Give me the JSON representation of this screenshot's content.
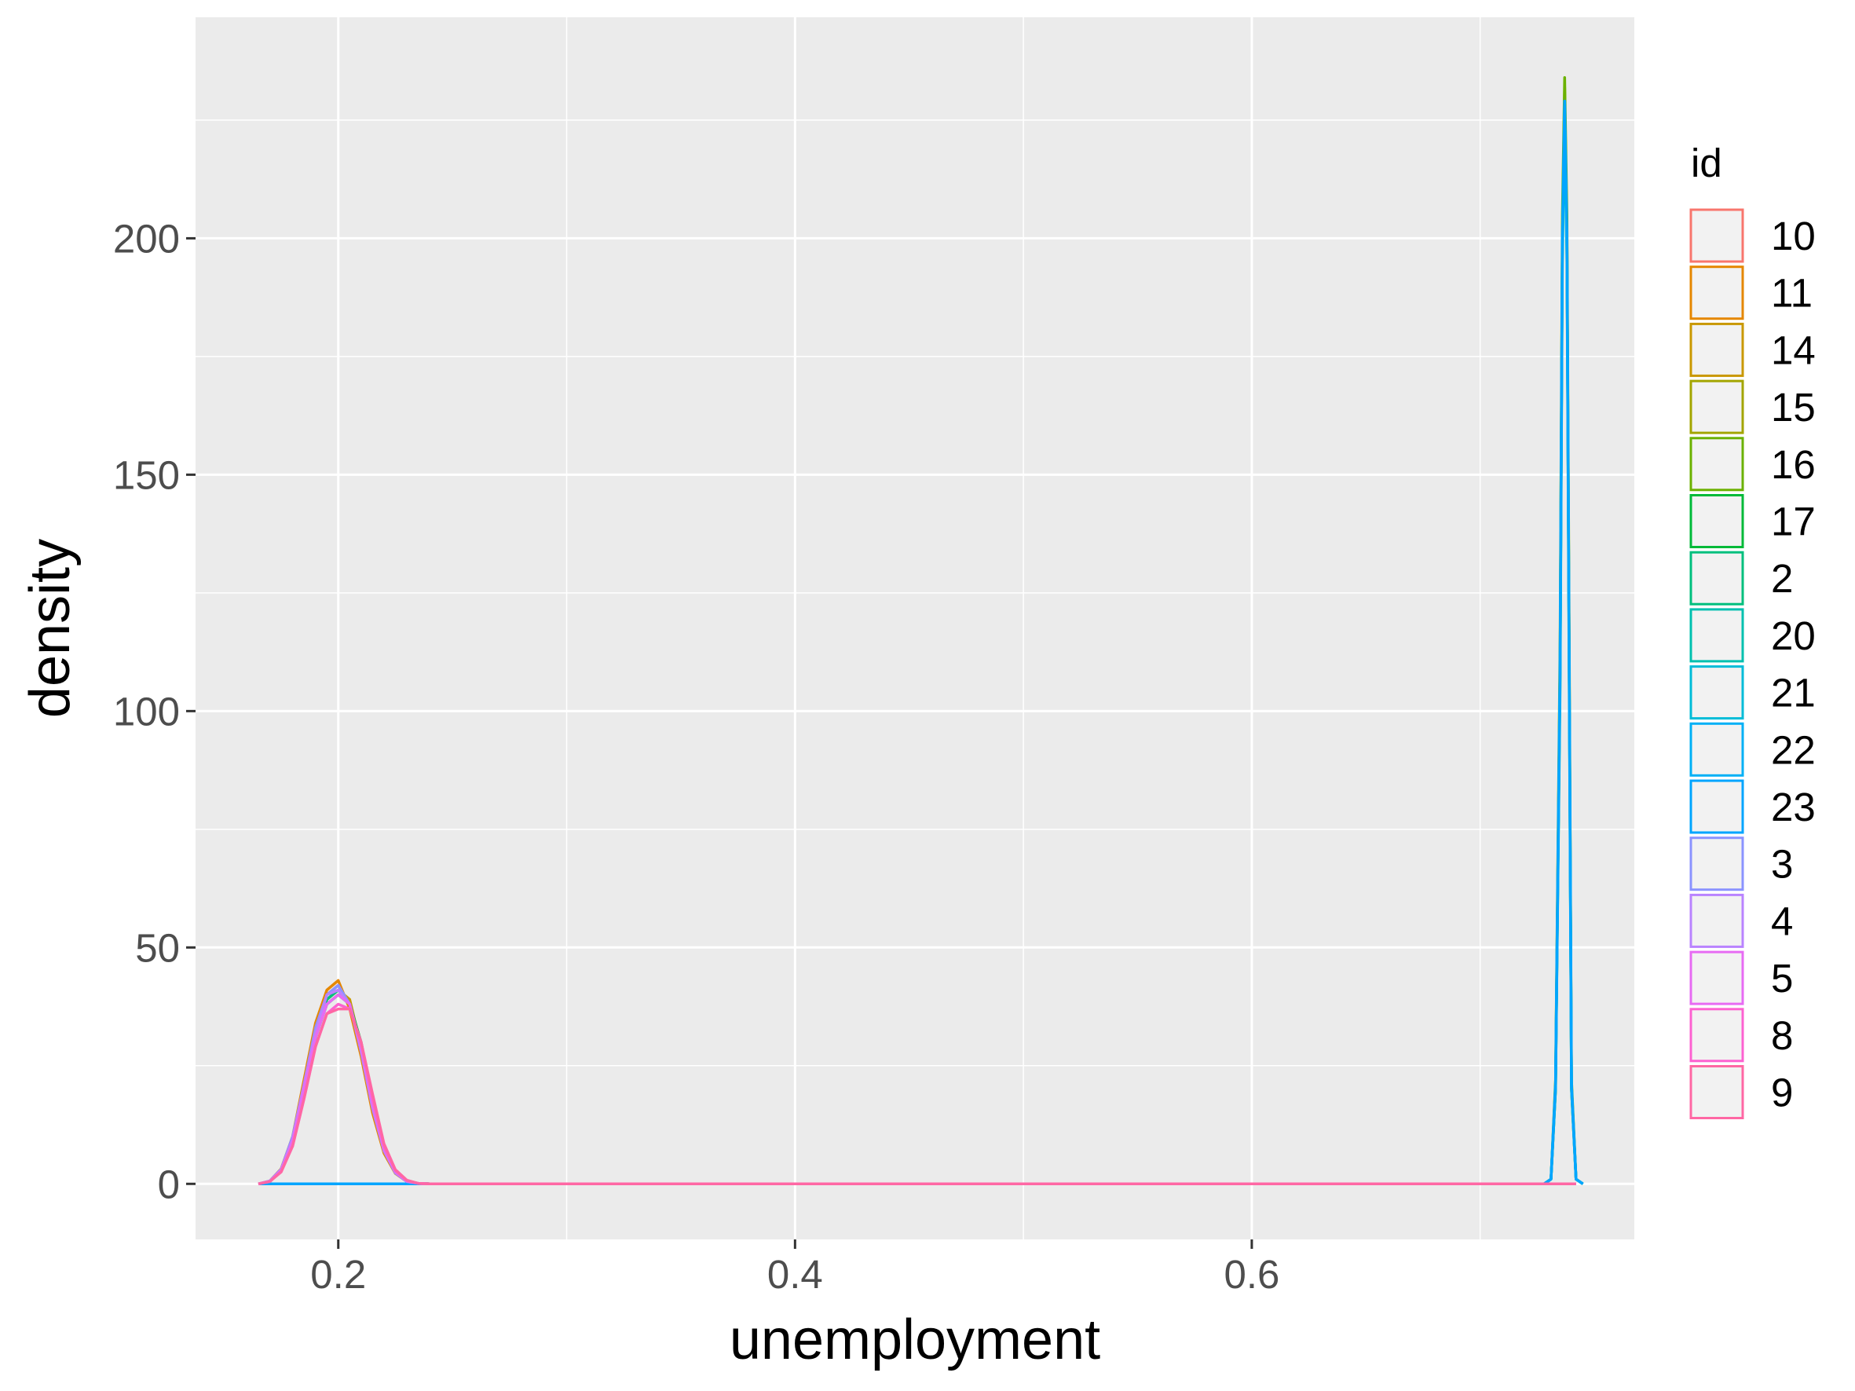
{
  "chart_data": {
    "type": "line",
    "subtype": "density",
    "title": "",
    "xlabel": "unemployment",
    "ylabel": "density",
    "xlim": [
      0.1375,
      0.7675
    ],
    "ylim": [
      -11.75,
      246.75
    ],
    "x_ticks": [
      0.2,
      0.4,
      0.6
    ],
    "x_tick_labels": [
      "0.2",
      "0.4",
      "0.6"
    ],
    "y_ticks": [
      0,
      50,
      100,
      150,
      200
    ],
    "y_tick_labels": [
      "0",
      "50",
      "100",
      "150",
      "200"
    ],
    "grid": true,
    "background": "#ebebeb",
    "legend": {
      "title": "id",
      "placement": "right",
      "entries": [
        {
          "label": "10",
          "color": "#F8766D"
        },
        {
          "label": "11",
          "color": "#E58700"
        },
        {
          "label": "14",
          "color": "#C99800"
        },
        {
          "label": "15",
          "color": "#A3A500"
        },
        {
          "label": "16",
          "color": "#6BB100"
        },
        {
          "label": "17",
          "color": "#00BA38"
        },
        {
          "label": "2",
          "color": "#00BF7D"
        },
        {
          "label": "20",
          "color": "#00C0AF"
        },
        {
          "label": "21",
          "color": "#00BCD8"
        },
        {
          "label": "22",
          "color": "#00B0F6"
        },
        {
          "label": "23",
          "color": "#00A5FF"
        },
        {
          "label": "3",
          "color": "#8B93FF"
        },
        {
          "label": "4",
          "color": "#B983FF"
        },
        {
          "label": "5",
          "color": "#E76BF3"
        },
        {
          "label": "8",
          "color": "#FD61D1"
        },
        {
          "label": "9",
          "color": "#FF67A4"
        }
      ]
    },
    "series": [
      {
        "name": "10",
        "color": "#F8766D",
        "x": [
          0.165,
          0.17,
          0.175,
          0.18,
          0.185,
          0.19,
          0.195,
          0.2,
          0.205,
          0.21,
          0.215,
          0.22,
          0.225,
          0.23,
          0.235,
          0.24,
          0.3,
          0.5,
          0.7,
          0.742
        ],
        "y": [
          0,
          0.6,
          3,
          9,
          20,
          32,
          40,
          42,
          38,
          28,
          16,
          7,
          2.5,
          0.6,
          0.1,
          0,
          0,
          0,
          0,
          0
        ]
      },
      {
        "name": "11",
        "color": "#E58700",
        "x": [
          0.165,
          0.17,
          0.175,
          0.18,
          0.185,
          0.19,
          0.195,
          0.2,
          0.205,
          0.21,
          0.215,
          0.22,
          0.225,
          0.23,
          0.235,
          0.24,
          0.3,
          0.5,
          0.7,
          0.742
        ],
        "y": [
          0,
          0.6,
          3.2,
          10,
          22,
          34,
          41,
          43,
          37,
          27,
          15,
          6.5,
          2.2,
          0.5,
          0.1,
          0,
          0,
          0,
          0,
          0
        ]
      },
      {
        "name": "14",
        "color": "#C99800",
        "x": [
          0.165,
          0.17,
          0.175,
          0.18,
          0.185,
          0.19,
          0.195,
          0.2,
          0.205,
          0.21,
          0.215,
          0.22,
          0.225,
          0.23,
          0.235,
          0.24,
          0.3,
          0.5,
          0.7,
          0.742
        ],
        "y": [
          0,
          0.5,
          2.8,
          9,
          19,
          31,
          39,
          41,
          39,
          29,
          17,
          7.5,
          2.6,
          0.6,
          0.1,
          0,
          0,
          0,
          0,
          0
        ]
      },
      {
        "name": "15",
        "color": "#A3A500",
        "x": [
          0.165,
          0.3,
          0.5,
          0.7,
          0.728,
          0.731,
          0.733,
          0.735,
          0.736,
          0.737,
          0.738,
          0.739,
          0.74,
          0.742,
          0.745
        ],
        "y": [
          0,
          0,
          0,
          0,
          0,
          1,
          20,
          110,
          200,
          232,
          200,
          110,
          20,
          1,
          0
        ]
      },
      {
        "name": "16",
        "color": "#6BB100",
        "x": [
          0.165,
          0.3,
          0.5,
          0.7,
          0.728,
          0.731,
          0.733,
          0.735,
          0.736,
          0.737,
          0.738,
          0.739,
          0.74,
          0.742,
          0.745
        ],
        "y": [
          0,
          0,
          0,
          0,
          0,
          1,
          22,
          115,
          205,
          234,
          205,
          115,
          22,
          1,
          0
        ]
      },
      {
        "name": "17",
        "color": "#00BA38",
        "x": [
          0.165,
          0.17,
          0.175,
          0.18,
          0.185,
          0.19,
          0.195,
          0.2,
          0.205,
          0.21,
          0.215,
          0.22,
          0.225,
          0.23,
          0.235,
          0.24,
          0.3,
          0.5,
          0.7,
          0.742
        ],
        "y": [
          0,
          0.5,
          2.7,
          8.5,
          19,
          31,
          38,
          40,
          38,
          30,
          18,
          8,
          2.8,
          0.7,
          0.1,
          0,
          0,
          0,
          0,
          0
        ]
      },
      {
        "name": "2",
        "color": "#00BF7D",
        "x": [
          0.165,
          0.17,
          0.175,
          0.18,
          0.185,
          0.19,
          0.195,
          0.2,
          0.205,
          0.21,
          0.215,
          0.22,
          0.225,
          0.23,
          0.235,
          0.24,
          0.3,
          0.5,
          0.7,
          0.742
        ],
        "y": [
          0,
          0.5,
          2.9,
          9,
          20,
          31,
          39,
          41,
          38,
          29,
          17,
          7.5,
          2.5,
          0.6,
          0.1,
          0,
          0,
          0,
          0,
          0
        ]
      },
      {
        "name": "20",
        "color": "#00C0AF",
        "x": [
          0.165,
          0.3,
          0.5,
          0.7,
          0.728,
          0.731,
          0.733,
          0.735,
          0.736,
          0.737,
          0.738,
          0.739,
          0.74,
          0.742,
          0.745
        ],
        "y": [
          0,
          0,
          0,
          0,
          0,
          1,
          20,
          105,
          195,
          226,
          195,
          105,
          20,
          1,
          0
        ]
      },
      {
        "name": "21",
        "color": "#00BCD8",
        "x": [
          0.165,
          0.3,
          0.5,
          0.7,
          0.728,
          0.731,
          0.733,
          0.735,
          0.736,
          0.737,
          0.738,
          0.739,
          0.74,
          0.742,
          0.745
        ],
        "y": [
          0,
          0,
          0,
          0,
          0,
          1,
          20,
          108,
          198,
          228,
          198,
          108,
          20,
          1,
          0
        ]
      },
      {
        "name": "22",
        "color": "#00B0F6",
        "x": [
          0.165,
          0.3,
          0.5,
          0.7,
          0.728,
          0.731,
          0.733,
          0.735,
          0.736,
          0.737,
          0.738,
          0.739,
          0.74,
          0.742,
          0.745
        ],
        "y": [
          0,
          0,
          0,
          0,
          0,
          1,
          21,
          110,
          200,
          229,
          200,
          110,
          21,
          1,
          0
        ]
      },
      {
        "name": "23",
        "color": "#00A5FF",
        "x": [
          0.165,
          0.3,
          0.5,
          0.7,
          0.728,
          0.731,
          0.733,
          0.735,
          0.736,
          0.737,
          0.738,
          0.739,
          0.74,
          0.742,
          0.745
        ],
        "y": [
          0,
          0,
          0,
          0,
          0,
          1,
          21,
          110,
          200,
          229,
          200,
          110,
          21,
          1,
          0
        ]
      },
      {
        "name": "3",
        "color": "#8B93FF",
        "x": [
          0.165,
          0.17,
          0.175,
          0.18,
          0.185,
          0.19,
          0.195,
          0.2,
          0.205,
          0.21,
          0.215,
          0.22,
          0.225,
          0.23,
          0.235,
          0.24,
          0.3,
          0.5,
          0.7,
          0.742
        ],
        "y": [
          0,
          0.6,
          3.1,
          10,
          21,
          33,
          40,
          42,
          38,
          28,
          16,
          7,
          2.3,
          0.5,
          0.1,
          0,
          0,
          0,
          0,
          0
        ]
      },
      {
        "name": "4",
        "color": "#B983FF",
        "x": [
          0.165,
          0.17,
          0.175,
          0.18,
          0.185,
          0.19,
          0.195,
          0.2,
          0.205,
          0.21,
          0.215,
          0.22,
          0.225,
          0.23,
          0.235,
          0.24,
          0.3,
          0.5,
          0.7,
          0.742
        ],
        "y": [
          0,
          0.6,
          3,
          9.5,
          21,
          32,
          40,
          41,
          38,
          28,
          16,
          7,
          2.4,
          0.5,
          0.1,
          0,
          0,
          0,
          0,
          0
        ]
      },
      {
        "name": "5",
        "color": "#E76BF3",
        "x": [
          0.165,
          0.17,
          0.175,
          0.18,
          0.185,
          0.19,
          0.195,
          0.2,
          0.205,
          0.21,
          0.215,
          0.22,
          0.225,
          0.23,
          0.235,
          0.24,
          0.3,
          0.5,
          0.7,
          0.742
        ],
        "y": [
          0,
          0.5,
          2.8,
          9,
          20,
          31,
          38,
          40,
          38,
          29,
          17,
          7.5,
          2.6,
          0.6,
          0.1,
          0,
          0,
          0,
          0,
          0
        ]
      },
      {
        "name": "8",
        "color": "#FD61D1",
        "x": [
          0.165,
          0.17,
          0.175,
          0.18,
          0.185,
          0.19,
          0.195,
          0.2,
          0.205,
          0.21,
          0.215,
          0.22,
          0.225,
          0.23,
          0.235,
          0.24,
          0.3,
          0.5,
          0.7,
          0.742
        ],
        "y": [
          0,
          0.5,
          2.6,
          8,
          18,
          29,
          36,
          38,
          37,
          30,
          18,
          8,
          2.8,
          0.7,
          0.1,
          0,
          0,
          0,
          0,
          0
        ]
      },
      {
        "name": "9",
        "color": "#FF67A4",
        "x": [
          0.165,
          0.17,
          0.175,
          0.18,
          0.185,
          0.19,
          0.195,
          0.2,
          0.205,
          0.21,
          0.215,
          0.22,
          0.225,
          0.23,
          0.235,
          0.24,
          0.3,
          0.5,
          0.7,
          0.742
        ],
        "y": [
          0,
          0.5,
          2.5,
          8,
          18,
          29,
          36,
          37,
          37,
          30,
          19,
          8.5,
          3,
          0.8,
          0.1,
          0,
          0,
          0,
          0,
          0
        ]
      }
    ]
  }
}
